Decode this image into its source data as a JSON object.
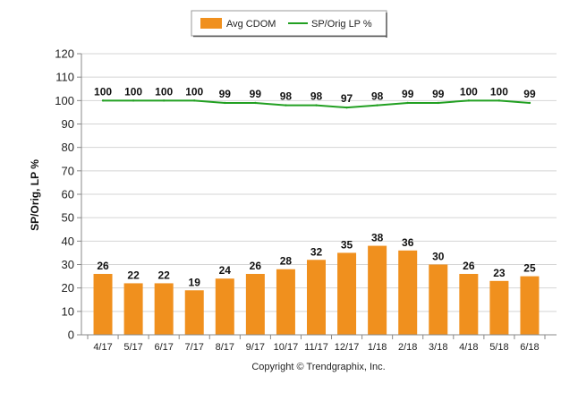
{
  "chart_data": {
    "type": "bar",
    "categories": [
      "4/17",
      "5/17",
      "6/17",
      "7/17",
      "8/17",
      "9/17",
      "10/17",
      "11/17",
      "12/17",
      "1/18",
      "2/18",
      "3/18",
      "4/18",
      "5/18",
      "6/18"
    ],
    "series": [
      {
        "name": "Avg CDOM",
        "type": "bar",
        "color": "#F0901E",
        "values": [
          26,
          22,
          22,
          19,
          24,
          26,
          28,
          32,
          35,
          38,
          36,
          30,
          26,
          23,
          25
        ]
      },
      {
        "name": "SP/Orig LP %",
        "type": "line",
        "color": "#22A022",
        "values": [
          100,
          100,
          100,
          100,
          99,
          99,
          98,
          98,
          97,
          98,
          99,
          99,
          100,
          100,
          99
        ]
      }
    ],
    "ylabel": "SP/Orig, LP %",
    "xlabel": "",
    "ylim": [
      0,
      120
    ],
    "yticks": [
      0,
      10,
      20,
      30,
      40,
      50,
      60,
      70,
      80,
      90,
      100,
      110,
      120
    ],
    "grid": true,
    "legend_position": "top-center"
  },
  "footer": {
    "copyright": "Copyright © Trendgraphix, Inc."
  }
}
